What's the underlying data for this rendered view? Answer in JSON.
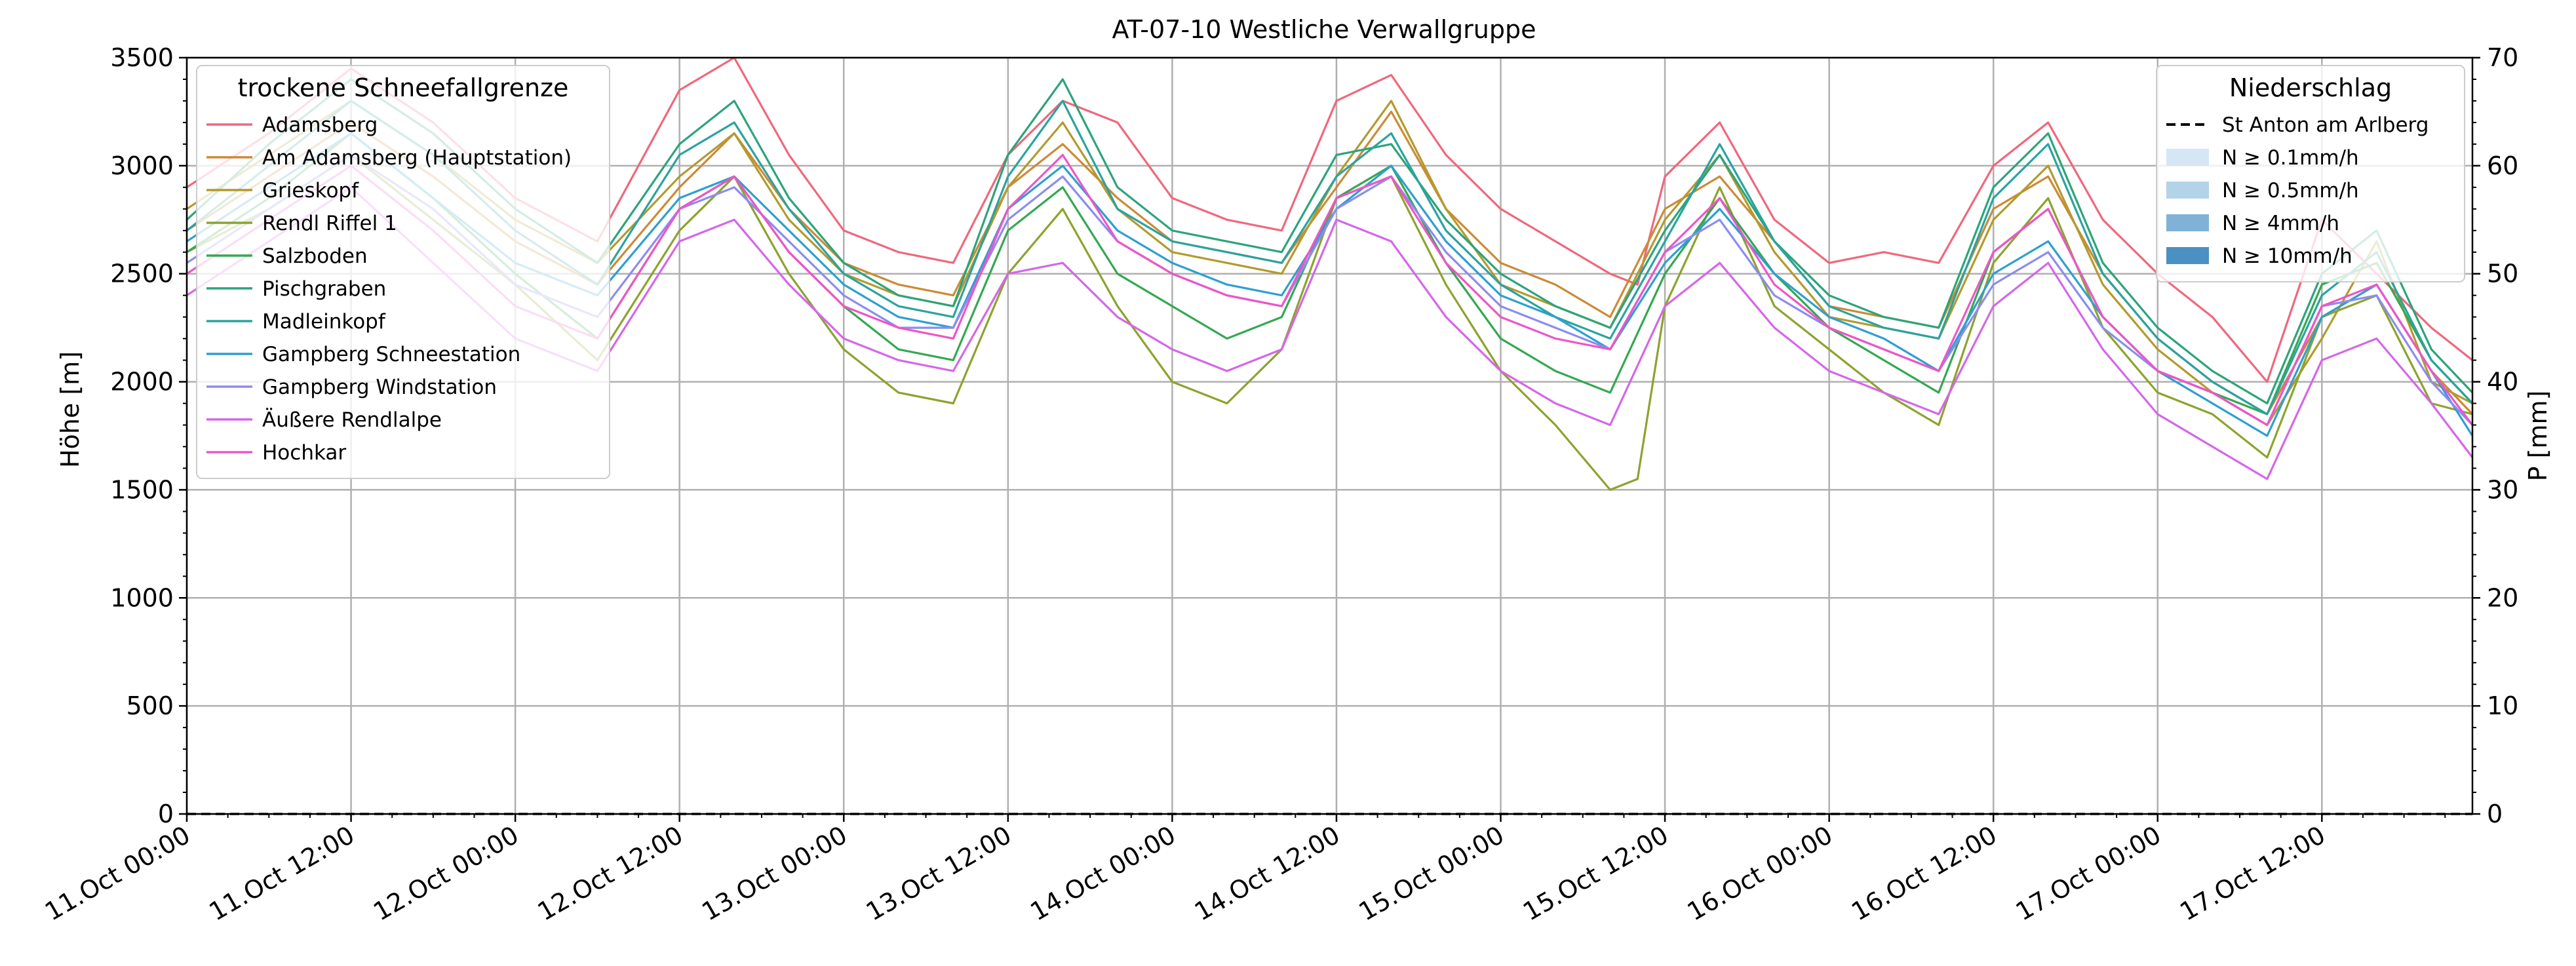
{
  "chart_data": {
    "type": "line",
    "title": "AT-07-10 Westliche Verwallgruppe",
    "ylabel": "Höhe [m]",
    "y2label": "P [mm]",
    "xlim": [
      0,
      167
    ],
    "ylim": [
      0,
      3500
    ],
    "y2lim": [
      0,
      70
    ],
    "grid": true,
    "x_unit": "hours since 11.Oct 00:00",
    "x_ticks": [
      {
        "x": 0,
        "label": "11.Oct 00:00"
      },
      {
        "x": 12,
        "label": "11.Oct 12:00"
      },
      {
        "x": 24,
        "label": "12.Oct 00:00"
      },
      {
        "x": 36,
        "label": "12.Oct 12:00"
      },
      {
        "x": 48,
        "label": "13.Oct 00:00"
      },
      {
        "x": 60,
        "label": "13.Oct 12:00"
      },
      {
        "x": 72,
        "label": "14.Oct 00:00"
      },
      {
        "x": 84,
        "label": "14.Oct 12:00"
      },
      {
        "x": 96,
        "label": "15.Oct 00:00"
      },
      {
        "x": 108,
        "label": "15.Oct 12:00"
      },
      {
        "x": 120,
        "label": "16.Oct 00:00"
      },
      {
        "x": 132,
        "label": "16.Oct 12:00"
      },
      {
        "x": 144,
        "label": "17.Oct 00:00"
      },
      {
        "x": 156,
        "label": "17.Oct 12:00"
      }
    ],
    "y_ticks": [
      {
        "v": 0,
        "label": "0"
      },
      {
        "v": 500,
        "label": "500"
      },
      {
        "v": 1000,
        "label": "1000"
      },
      {
        "v": 1500,
        "label": "1500"
      },
      {
        "v": 2000,
        "label": "2000"
      },
      {
        "v": 2500,
        "label": "2500"
      },
      {
        "v": 3000,
        "label": "3000"
      },
      {
        "v": 3500,
        "label": "3500"
      }
    ],
    "y2_ticks": [
      {
        "v": 0,
        "label": "0"
      },
      {
        "v": 10,
        "label": "10"
      },
      {
        "v": 20,
        "label": "20"
      },
      {
        "v": 30,
        "label": "30"
      },
      {
        "v": 40,
        "label": "40"
      },
      {
        "v": 50,
        "label": "50"
      },
      {
        "v": 60,
        "label": "60"
      },
      {
        "v": 70,
        "label": "70"
      }
    ],
    "legend_left": {
      "title": "trockene Schneefallgrenze",
      "placement": "top-left"
    },
    "legend_right": {
      "title": "Niederschlag",
      "placement": "top-right",
      "items": [
        {
          "label": "St Anton am Arlberg",
          "kind": "dashed-line",
          "color": "#000000"
        },
        {
          "label": "N ≥ 0.1mm/h",
          "kind": "patch",
          "color": "#d6e6f4"
        },
        {
          "label": "N ≥ 0.5mm/h",
          "kind": "patch",
          "color": "#b3d3e8"
        },
        {
          "label": "N ≥ 4mm/h",
          "kind": "patch",
          "color": "#7fb2d6"
        },
        {
          "label": "N ≥ 10mm/h",
          "kind": "patch",
          "color": "#4a90c2"
        }
      ]
    },
    "precipitation": {
      "name": "St Anton am Arlberg",
      "x": [
        0,
        167
      ],
      "values": [
        0,
        0
      ]
    },
    "series": [
      {
        "name": "Adamsberg",
        "color": "#f0677c",
        "x": [
          0,
          6,
          12,
          18,
          24,
          30,
          36,
          40,
          44,
          48,
          52,
          56,
          60,
          64,
          68,
          72,
          76,
          80,
          84,
          88,
          92,
          96,
          100,
          104,
          106,
          108,
          112,
          116,
          120,
          124,
          128,
          132,
          136,
          140,
          144,
          148,
          152,
          156,
          160,
          164,
          167
        ],
        "values": [
          2900,
          3150,
          3450,
          3200,
          2850,
          2650,
          3350,
          3500,
          3050,
          2700,
          2600,
          2550,
          3050,
          3300,
          3200,
          2850,
          2750,
          2700,
          3300,
          3420,
          3050,
          2800,
          2650,
          2500,
          2450,
          2950,
          3200,
          2750,
          2550,
          2600,
          2550,
          3000,
          3200,
          2750,
          2500,
          2300,
          2000,
          2750,
          2500,
          2250,
          2100
        ]
      },
      {
        "name": "Am Adamsberg (Hauptstation)",
        "color": "#cc8a36",
        "x": [
          0,
          6,
          12,
          18,
          24,
          30,
          36,
          40,
          44,
          48,
          52,
          56,
          60,
          64,
          68,
          72,
          76,
          80,
          84,
          88,
          92,
          96,
          100,
          104,
          108,
          112,
          116,
          120,
          124,
          128,
          132,
          136,
          140,
          144,
          148,
          152,
          156,
          160,
          164,
          167
        ],
        "values": [
          2700,
          2950,
          3200,
          2950,
          2650,
          2450,
          2900,
          3150,
          2800,
          2550,
          2450,
          2400,
          2900,
          3100,
          2850,
          2650,
          2600,
          2550,
          2900,
          3250,
          2800,
          2550,
          2450,
          2300,
          2800,
          2950,
          2650,
          2350,
          2300,
          2250,
          2800,
          2950,
          2500,
          2200,
          2000,
          1850,
          2300,
          2450,
          2050,
          1850
        ]
      },
      {
        "name": "Grieskopf",
        "color": "#b39a2e",
        "x": [
          0,
          6,
          12,
          18,
          24,
          30,
          36,
          40,
          44,
          48,
          52,
          56,
          60,
          64,
          68,
          72,
          76,
          80,
          84,
          88,
          92,
          96,
          100,
          104,
          108,
          112,
          116,
          120,
          124,
          128,
          132,
          136,
          140,
          144,
          148,
          152,
          156,
          160,
          164,
          167
        ],
        "values": [
          2800,
          3050,
          3300,
          3050,
          2750,
          2550,
          2950,
          3150,
          2750,
          2500,
          2400,
          2350,
          2900,
          3200,
          2800,
          2600,
          2550,
          2500,
          2950,
          3300,
          2800,
          2450,
          2350,
          2250,
          2750,
          3050,
          2600,
          2300,
          2250,
          2200,
          2750,
          3000,
          2450,
          2150,
          1950,
          1800,
          2200,
          2650,
          2000,
          1900
        ]
      },
      {
        "name": "Rendl Riffel 1",
        "color": "#8ca32e",
        "x": [
          0,
          6,
          12,
          18,
          24,
          30,
          36,
          40,
          44,
          48,
          52,
          56,
          60,
          64,
          68,
          72,
          76,
          80,
          84,
          88,
          92,
          96,
          100,
          104,
          106,
          108,
          112,
          116,
          120,
          124,
          128,
          132,
          136,
          140,
          144,
          148,
          152,
          156,
          160,
          164,
          167
        ],
        "values": [
          2600,
          2800,
          3050,
          2750,
          2450,
          2100,
          2700,
          2950,
          2500,
          2150,
          1950,
          1900,
          2500,
          2800,
          2350,
          2000,
          1900,
          2150,
          2850,
          2950,
          2450,
          2050,
          1800,
          1500,
          1550,
          2350,
          2900,
          2350,
          2150,
          1950,
          1800,
          2550,
          2850,
          2250,
          1950,
          1850,
          1650,
          2300,
          2400,
          1900,
          1850
        ]
      },
      {
        "name": "Salzboden",
        "color": "#33a851",
        "x": [
          0,
          6,
          12,
          18,
          24,
          30,
          36,
          40,
          44,
          48,
          52,
          56,
          60,
          64,
          68,
          72,
          76,
          80,
          84,
          88,
          92,
          96,
          100,
          104,
          108,
          112,
          116,
          120,
          124,
          128,
          132,
          136,
          140,
          144,
          148,
          152,
          156,
          160,
          164,
          167
        ],
        "values": [
          2600,
          2850,
          3150,
          2850,
          2500,
          2200,
          2800,
          2950,
          2600,
          2350,
          2150,
          2100,
          2700,
          2900,
          2500,
          2350,
          2200,
          2300,
          2850,
          3000,
          2550,
          2200,
          2050,
          1950,
          2500,
          2850,
          2500,
          2250,
          2100,
          1950,
          2600,
          2800,
          2300,
          2050,
          1950,
          1850,
          2450,
          2550,
          2100,
          1900
        ]
      },
      {
        "name": "Pischgraben",
        "color": "#2ca47a",
        "x": [
          0,
          6,
          12,
          18,
          24,
          30,
          36,
          40,
          44,
          48,
          52,
          56,
          60,
          64,
          68,
          72,
          76,
          80,
          84,
          88,
          92,
          96,
          100,
          104,
          108,
          112,
          116,
          120,
          124,
          128,
          132,
          136,
          140,
          144,
          148,
          152,
          156,
          160,
          164,
          167
        ],
        "values": [
          2750,
          3100,
          3400,
          3150,
          2800,
          2550,
          3100,
          3300,
          2850,
          2550,
          2400,
          2350,
          3050,
          3400,
          2900,
          2700,
          2650,
          2600,
          3050,
          3100,
          2750,
          2500,
          2350,
          2250,
          2700,
          3050,
          2650,
          2400,
          2300,
          2250,
          2900,
          3150,
          2550,
          2250,
          2050,
          1900,
          2500,
          2700,
          2150,
          1950
        ]
      },
      {
        "name": "Madleinkopf",
        "color": "#2aa3a0",
        "x": [
          0,
          6,
          12,
          18,
          24,
          30,
          36,
          40,
          44,
          48,
          52,
          56,
          60,
          64,
          68,
          72,
          76,
          80,
          84,
          88,
          92,
          96,
          100,
          104,
          108,
          112,
          116,
          120,
          124,
          128,
          132,
          136,
          140,
          144,
          148,
          152,
          156,
          160,
          164,
          167
        ],
        "values": [
          2700,
          3000,
          3300,
          3050,
          2700,
          2450,
          3050,
          3200,
          2800,
          2500,
          2350,
          2300,
          2950,
          3300,
          2800,
          2650,
          2600,
          2550,
          2950,
          3150,
          2700,
          2450,
          2300,
          2200,
          2650,
          3100,
          2650,
          2350,
          2250,
          2200,
          2850,
          3100,
          2500,
          2200,
          2000,
          1850,
          2400,
          2600,
          2100,
          1900
        ]
      },
      {
        "name": "Gampberg Schneestation",
        "color": "#2e9fd0",
        "x": [
          0,
          6,
          12,
          18,
          24,
          30,
          36,
          40,
          44,
          48,
          52,
          56,
          60,
          64,
          68,
          72,
          76,
          80,
          84,
          88,
          92,
          96,
          100,
          104,
          108,
          112,
          116,
          120,
          124,
          128,
          132,
          136,
          140,
          144,
          148,
          152,
          156,
          160,
          164,
          167
        ],
        "values": [
          2650,
          2900,
          3150,
          2850,
          2550,
          2400,
          2850,
          2950,
          2700,
          2450,
          2300,
          2250,
          2800,
          3000,
          2700,
          2550,
          2450,
          2400,
          2800,
          3000,
          2650,
          2400,
          2300,
          2150,
          2550,
          2800,
          2500,
          2300,
          2200,
          2050,
          2500,
          2650,
          2300,
          2050,
          1900,
          1750,
          2300,
          2450,
          2050,
          1750
        ]
      },
      {
        "name": "Gampberg Windstation",
        "color": "#8c8cf0",
        "x": [
          0,
          6,
          12,
          18,
          24,
          30,
          36,
          40,
          44,
          48,
          52,
          56,
          60,
          64,
          68,
          72,
          76,
          80,
          84,
          88,
          92,
          96,
          100,
          104,
          108,
          112,
          116,
          120,
          124,
          128,
          132,
          136,
          140,
          144,
          148,
          152,
          156,
          160,
          164,
          167
        ],
        "values": [
          2550,
          2800,
          3050,
          2800,
          2450,
          2300,
          2800,
          2900,
          2650,
          2400,
          2250,
          2250,
          2750,
          2950,
          2650,
          2500,
          2400,
          2350,
          2800,
          2950,
          2600,
          2350,
          2250,
          2150,
          2600,
          2750,
          2400,
          2250,
          2150,
          2050,
          2450,
          2600,
          2250,
          2050,
          1950,
          1800,
          2350,
          2400,
          2000,
          1800
        ]
      },
      {
        "name": "Äußere Rendlalpe",
        "color": "#d467e8",
        "x": [
          0,
          6,
          12,
          18,
          24,
          30,
          36,
          40,
          44,
          48,
          52,
          56,
          60,
          64,
          68,
          72,
          76,
          80,
          84,
          88,
          92,
          96,
          100,
          104,
          108,
          112,
          116,
          120,
          124,
          128,
          132,
          136,
          140,
          144,
          148,
          152,
          156,
          160,
          164,
          167
        ],
        "values": [
          2400,
          2650,
          2900,
          2550,
          2200,
          2050,
          2650,
          2750,
          2450,
          2200,
          2100,
          2050,
          2500,
          2550,
          2300,
          2150,
          2050,
          2150,
          2750,
          2650,
          2300,
          2050,
          1900,
          1800,
          2350,
          2550,
          2250,
          2050,
          1950,
          1850,
          2350,
          2550,
          2150,
          1850,
          1700,
          1550,
          2100,
          2200,
          1900,
          1650
        ]
      },
      {
        "name": "Hochkar",
        "color": "#ee55c8",
        "x": [
          0,
          6,
          12,
          18,
          24,
          30,
          36,
          40,
          44,
          48,
          52,
          56,
          60,
          64,
          68,
          72,
          76,
          80,
          84,
          88,
          92,
          96,
          100,
          104,
          108,
          112,
          116,
          120,
          124,
          128,
          132,
          136,
          140,
          144,
          148,
          152,
          156,
          160,
          164,
          167
        ],
        "values": [
          2500,
          2750,
          3000,
          2700,
          2350,
          2200,
          2800,
          2950,
          2600,
          2350,
          2250,
          2200,
          2800,
          3050,
          2650,
          2500,
          2400,
          2350,
          2850,
          2950,
          2550,
          2300,
          2200,
          2150,
          2600,
          2850,
          2450,
          2250,
          2150,
          2050,
          2600,
          2800,
          2300,
          2050,
          1950,
          1800,
          2350,
          2450,
          2050,
          1800
        ]
      }
    ]
  }
}
